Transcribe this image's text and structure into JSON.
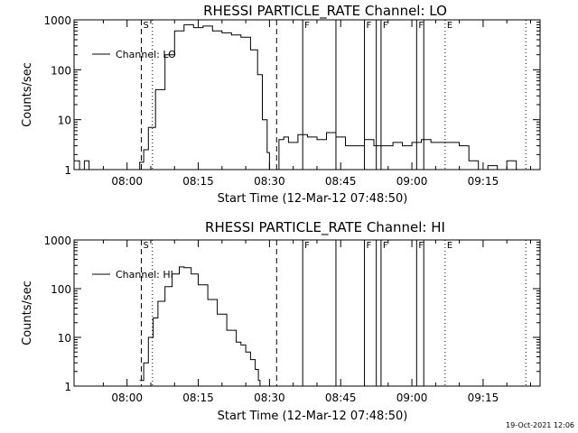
{
  "chart_data": [
    {
      "type": "line",
      "title": "RHESSI PARTICLE_RATE Channel: LO",
      "xlabel": "Start Time (12-Mar-12 07:48:50)",
      "ylabel": "Counts/sec",
      "yscale": "log",
      "ylim": [
        1,
        1000
      ],
      "xlim": [
        "07:48:50",
        "09:27:00"
      ],
      "xticks": [
        "08:00",
        "08:15",
        "08:30",
        "08:45",
        "09:00",
        "09:15"
      ],
      "yticks": [
        "1",
        "10",
        "100",
        "1000"
      ],
      "legend": {
        "label": "Channel: LO",
        "placement": "top-left"
      },
      "grid": false,
      "series": [
        {
          "name": "Channel: LO",
          "x": [
            "07:48:50",
            "07:50:00",
            "07:51:00",
            "07:52:00",
            "07:53:00",
            "07:55:00",
            "07:58:00",
            "08:00:00",
            "08:02:00",
            "08:02:40",
            "08:03:30",
            "08:04:30",
            "08:06:00",
            "08:08:00",
            "08:10:00",
            "08:12:00",
            "08:14:00",
            "08:16:00",
            "08:18:00",
            "08:20:00",
            "08:22:00",
            "08:24:00",
            "08:26:00",
            "08:27:30",
            "08:28:30",
            "08:29:30",
            "08:30:00",
            "08:31:00",
            "08:32:00",
            "08:33:00",
            "08:34:00",
            "08:36:00",
            "08:38:00",
            "08:40:00",
            "08:42:00",
            "08:44:00",
            "08:46:00",
            "08:48:00",
            "08:50:00",
            "08:52:00",
            "08:54:00",
            "08:56:00",
            "08:58:00",
            "09:00:00",
            "09:02:00",
            "09:04:00",
            "09:06:00",
            "09:08:00",
            "09:10:00",
            "09:12:00",
            "09:14:00",
            "09:16:00",
            "09:18:00",
            "09:20:00",
            "09:22:00",
            "09:24:00"
          ],
          "y": [
            1.5,
            1,
            1.5,
            1,
            1,
            1,
            1,
            1,
            1,
            1.4,
            2.5,
            7,
            40,
            200,
            600,
            800,
            700,
            750,
            600,
            550,
            500,
            450,
            250,
            80,
            10,
            2.2,
            1,
            1,
            4,
            4.5,
            3.5,
            5,
            4.5,
            4,
            5.5,
            4.5,
            3,
            3,
            4,
            3,
            3,
            3.5,
            3,
            3.5,
            4,
            3.5,
            3.5,
            3.5,
            3,
            1.5,
            1,
            1.2,
            1,
            1.5,
            1,
            1
          ]
        }
      ],
      "annotations": [
        {
          "label": "S",
          "time": "08:03:00",
          "style": "dashed"
        },
        {
          "label": "",
          "time": "08:05:20",
          "style": "dotted"
        },
        {
          "label": "",
          "time": "08:31:30",
          "style": "dashed"
        },
        {
          "label": "F",
          "time": "08:37:00",
          "style": "solid"
        },
        {
          "label": "",
          "time": "08:44:00",
          "style": "solid"
        },
        {
          "label": "F",
          "time": "08:50:00",
          "style": "solid"
        },
        {
          "label": "",
          "time": "08:52:30",
          "style": "solid"
        },
        {
          "label": "F",
          "time": "08:53:30",
          "style": "solid"
        },
        {
          "label": "F",
          "time": "09:01:00",
          "style": "solid"
        },
        {
          "label": "",
          "time": "09:02:30",
          "style": "solid"
        },
        {
          "label": "E",
          "time": "09:07:00",
          "style": "dotted"
        },
        {
          "label": "",
          "time": "09:24:00",
          "style": "dotted"
        }
      ]
    },
    {
      "type": "line",
      "title": "RHESSI PARTICLE_RATE Channel: HI",
      "xlabel": "Start Time (12-Mar-12 07:48:50)",
      "ylabel": "Counts/sec",
      "yscale": "log",
      "ylim": [
        1,
        1000
      ],
      "xlim": [
        "07:48:50",
        "09:27:00"
      ],
      "xticks": [
        "08:00",
        "08:15",
        "08:30",
        "08:45",
        "09:00",
        "09:15"
      ],
      "yticks": [
        "1",
        "10",
        "100",
        "1000"
      ],
      "legend": {
        "label": "Channel: HI",
        "placement": "top-left"
      },
      "grid": false,
      "series": [
        {
          "name": "Channel: HI",
          "x": [
            "08:02:40",
            "08:03:30",
            "08:04:30",
            "08:05:30",
            "08:06:30",
            "08:08:00",
            "08:09:30",
            "08:11:00",
            "08:12:00",
            "08:13:30",
            "08:15:00",
            "08:17:00",
            "08:19:00",
            "08:21:00",
            "08:23:00",
            "08:24:00",
            "08:25:00",
            "08:26:00",
            "08:27:00",
            "08:27:40",
            "08:28:00"
          ],
          "y": [
            1.3,
            3,
            10,
            25,
            55,
            110,
            200,
            280,
            270,
            200,
            120,
            60,
            30,
            14,
            8,
            7,
            5,
            3.5,
            2.2,
            1.3,
            1
          ]
        }
      ],
      "annotations": [
        {
          "label": "S",
          "time": "08:03:00",
          "style": "dashed"
        },
        {
          "label": "",
          "time": "08:05:20",
          "style": "dotted"
        },
        {
          "label": "",
          "time": "08:31:30",
          "style": "dashed"
        },
        {
          "label": "F",
          "time": "08:37:00",
          "style": "solid"
        },
        {
          "label": "",
          "time": "08:44:00",
          "style": "solid"
        },
        {
          "label": "F",
          "time": "08:50:00",
          "style": "solid"
        },
        {
          "label": "",
          "time": "08:52:30",
          "style": "solid"
        },
        {
          "label": "F",
          "time": "08:53:30",
          "style": "solid"
        },
        {
          "label": "F",
          "time": "09:01:00",
          "style": "solid"
        },
        {
          "label": "",
          "time": "09:02:30",
          "style": "solid"
        },
        {
          "label": "E",
          "time": "09:07:00",
          "style": "dotted"
        },
        {
          "label": "",
          "time": "09:24:00",
          "style": "dotted"
        }
      ]
    }
  ],
  "footer": {
    "timestamp": "19-Oct-2021 12:06"
  }
}
